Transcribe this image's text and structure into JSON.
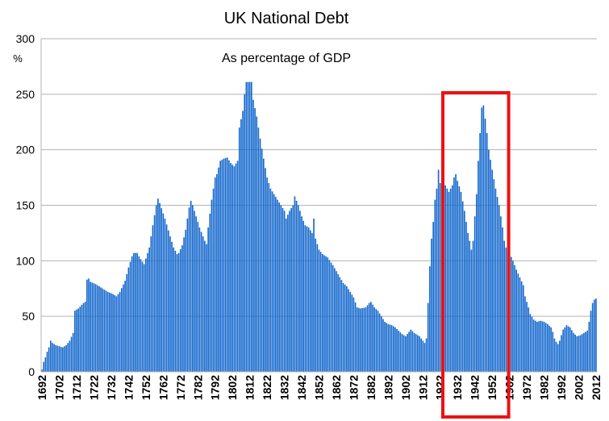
{
  "chart_data": {
    "type": "bar",
    "title": "UK National Debt",
    "subtitle": "As percentage of GDP",
    "ylabel": "%",
    "ylim": [
      0,
      300
    ],
    "yticks": [
      0,
      50,
      100,
      150,
      200,
      250,
      300
    ],
    "grid": true,
    "bar_color": "#1166cc",
    "grid_color": "#b3b3b3",
    "highlight_color": "#ee1111",
    "x_start": 1692,
    "x_end": 2012,
    "xticks": [
      "1692",
      "1702",
      "1712",
      "1722",
      "1732",
      "1742",
      "1752",
      "1762",
      "1772",
      "1782",
      "1792",
      "1802",
      "1812",
      "1822",
      "1832",
      "1842",
      "1852",
      "1862",
      "1872",
      "1882",
      "1892",
      "1902",
      "1912",
      "1922",
      "1932",
      "1942",
      "1952",
      "1962",
      "1972",
      "1982",
      "1992",
      "2002",
      "2012"
    ],
    "highlight_range": [
      1924,
      1962
    ],
    "series": [
      {
        "anchors": [
          [
            1692,
            2
          ],
          [
            1693,
            9
          ],
          [
            1694,
            13
          ],
          [
            1695,
            18
          ],
          [
            1696,
            22
          ],
          [
            1697,
            28
          ],
          [
            1698,
            26
          ],
          [
            1699,
            25
          ],
          [
            1700,
            24
          ],
          [
            1702,
            23
          ],
          [
            1704,
            22
          ],
          [
            1706,
            24
          ],
          [
            1708,
            28
          ],
          [
            1710,
            35
          ],
          [
            1711,
            55
          ],
          [
            1713,
            57
          ],
          [
            1716,
            62
          ],
          [
            1717,
            63
          ],
          [
            1718,
            83
          ],
          [
            1719,
            84
          ],
          [
            1720,
            81
          ],
          [
            1723,
            79
          ],
          [
            1726,
            76
          ],
          [
            1728,
            74
          ],
          [
            1730,
            72
          ],
          [
            1733,
            70
          ],
          [
            1735,
            68
          ],
          [
            1737,
            72
          ],
          [
            1740,
            82
          ],
          [
            1742,
            94
          ],
          [
            1744,
            104
          ],
          [
            1745,
            107
          ],
          [
            1747,
            107
          ],
          [
            1748,
            104
          ],
          [
            1750,
            99
          ],
          [
            1751,
            97
          ],
          [
            1754,
            112
          ],
          [
            1756,
            132
          ],
          [
            1758,
            150
          ],
          [
            1759,
            156
          ],
          [
            1760,
            152
          ],
          [
            1763,
            138
          ],
          [
            1766,
            122
          ],
          [
            1768,
            112
          ],
          [
            1770,
            106
          ],
          [
            1771,
            107
          ],
          [
            1773,
            114
          ],
          [
            1775,
            128
          ],
          [
            1777,
            148
          ],
          [
            1778,
            154
          ],
          [
            1779,
            150
          ],
          [
            1781,
            140
          ],
          [
            1783,
            130
          ],
          [
            1785,
            122
          ],
          [
            1786,
            118
          ],
          [
            1787,
            115
          ],
          [
            1788,
            130
          ],
          [
            1790,
            155
          ],
          [
            1792,
            175
          ],
          [
            1793,
            178
          ],
          [
            1795,
            190
          ],
          [
            1797,
            192
          ],
          [
            1799,
            193
          ],
          [
            1801,
            188
          ],
          [
            1803,
            185
          ],
          [
            1805,
            190
          ],
          [
            1806,
            220
          ],
          [
            1808,
            235
          ],
          [
            1809,
            250
          ],
          [
            1810,
            261
          ],
          [
            1813,
            261
          ],
          [
            1814,
            245
          ],
          [
            1816,
            230
          ],
          [
            1818,
            210
          ],
          [
            1820,
            192
          ],
          [
            1822,
            175
          ],
          [
            1824,
            165
          ],
          [
            1826,
            160
          ],
          [
            1828,
            155
          ],
          [
            1830,
            150
          ],
          [
            1832,
            145
          ],
          [
            1833,
            138
          ],
          [
            1835,
            145
          ],
          [
            1837,
            150
          ],
          [
            1838,
            158
          ],
          [
            1840,
            150
          ],
          [
            1842,
            140
          ],
          [
            1844,
            132
          ],
          [
            1846,
            130
          ],
          [
            1848,
            125
          ],
          [
            1849,
            138
          ],
          [
            1850,
            120
          ],
          [
            1852,
            110
          ],
          [
            1854,
            106
          ],
          [
            1857,
            103
          ],
          [
            1860,
            96
          ],
          [
            1863,
            88
          ],
          [
            1866,
            80
          ],
          [
            1868,
            77
          ],
          [
            1870,
            72
          ],
          [
            1872,
            67
          ],
          [
            1874,
            58
          ],
          [
            1876,
            57
          ],
          [
            1879,
            58
          ],
          [
            1881,
            62
          ],
          [
            1882,
            63
          ],
          [
            1884,
            58
          ],
          [
            1886,
            55
          ],
          [
            1888,
            50
          ],
          [
            1890,
            45
          ],
          [
            1892,
            43
          ],
          [
            1894,
            42
          ],
          [
            1896,
            40
          ],
          [
            1898,
            37
          ],
          [
            1900,
            34
          ],
          [
            1902,
            32
          ],
          [
            1904,
            36
          ],
          [
            1905,
            38
          ],
          [
            1907,
            35
          ],
          [
            1910,
            32
          ],
          [
            1912,
            28
          ],
          [
            1913,
            26
          ],
          [
            1914,
            30
          ],
          [
            1915,
            62
          ],
          [
            1916,
            95
          ],
          [
            1917,
            120
          ],
          [
            1918,
            135
          ],
          [
            1919,
            155
          ],
          [
            1920,
            165
          ],
          [
            1921,
            182
          ],
          [
            1922,
            170
          ],
          [
            1923,
            172
          ],
          [
            1924,
            165
          ],
          [
            1925,
            168
          ],
          [
            1927,
            162
          ],
          [
            1929,
            168
          ],
          [
            1930,
            175
          ],
          [
            1931,
            178
          ],
          [
            1932,
            172
          ],
          [
            1934,
            162
          ],
          [
            1936,
            145
          ],
          [
            1937,
            135
          ],
          [
            1938,
            125
          ],
          [
            1939,
            118
          ],
          [
            1940,
            110
          ],
          [
            1941,
            118
          ],
          [
            1942,
            140
          ],
          [
            1943,
            160
          ],
          [
            1944,
            190
          ],
          [
            1945,
            215
          ],
          [
            1946,
            238
          ],
          [
            1947,
            240
          ],
          [
            1948,
            228
          ],
          [
            1949,
            215
          ],
          [
            1950,
            200
          ],
          [
            1952,
            182
          ],
          [
            1954,
            165
          ],
          [
            1956,
            150
          ],
          [
            1958,
            130
          ],
          [
            1959,
            118
          ],
          [
            1960,
            112
          ],
          [
            1962,
            107
          ],
          [
            1964,
            100
          ],
          [
            1966,
            92
          ],
          [
            1968,
            85
          ],
          [
            1970,
            78
          ],
          [
            1971,
            68
          ],
          [
            1973,
            58
          ],
          [
            1974,
            52
          ],
          [
            1976,
            47
          ],
          [
            1978,
            45
          ],
          [
            1980,
            46
          ],
          [
            1982,
            45
          ],
          [
            1984,
            43
          ],
          [
            1986,
            40
          ],
          [
            1987,
            36
          ],
          [
            1988,
            30
          ],
          [
            1989,
            27
          ],
          [
            1990,
            25
          ],
          [
            1991,
            28
          ],
          [
            1992,
            33
          ],
          [
            1993,
            38
          ],
          [
            1995,
            42
          ],
          [
            1997,
            40
          ],
          [
            1999,
            35
          ],
          [
            2001,
            32
          ],
          [
            2003,
            33
          ],
          [
            2005,
            35
          ],
          [
            2007,
            37
          ],
          [
            2008,
            45
          ],
          [
            2009,
            55
          ],
          [
            2010,
            62
          ],
          [
            2011,
            65
          ],
          [
            2012,
            66
          ]
        ]
      }
    ]
  }
}
